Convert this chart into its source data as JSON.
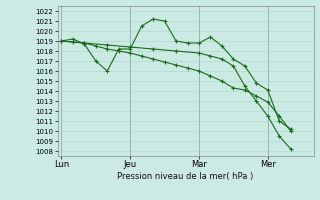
{
  "bg_color": "#cceae4",
  "grid_color": "#aad4cc",
  "line_color": "#1a6b1a",
  "xlabel": "Pression niveau de la mer( hPa )",
  "ylim": [
    1007.5,
    1022.5
  ],
  "yticks": [
    1008,
    1009,
    1010,
    1011,
    1012,
    1013,
    1014,
    1015,
    1016,
    1017,
    1018,
    1019,
    1020,
    1021,
    1022
  ],
  "xtick_labels": [
    "Lun",
    "Jeu",
    "Mar",
    "Mer"
  ],
  "xtick_positions": [
    0,
    36,
    72,
    108
  ],
  "vline_positions": [
    0,
    36,
    72,
    108
  ],
  "xlim": [
    -2,
    132
  ],
  "series": [
    {
      "x": [
        0,
        6,
        12,
        18,
        24,
        30,
        36,
        42,
        48,
        54,
        60,
        66,
        72,
        78,
        84,
        90,
        96,
        102,
        108,
        114,
        120
      ],
      "y": [
        1019.0,
        1019.2,
        1018.7,
        1017.0,
        1016.0,
        1018.2,
        1018.2,
        1020.5,
        1021.2,
        1021.0,
        1019.0,
        1018.8,
        1018.8,
        1019.4,
        1018.5,
        1017.2,
        1016.5,
        1014.8,
        1014.1,
        1011.0,
        1010.2
      ]
    },
    {
      "x": [
        0,
        6,
        12,
        18,
        24,
        30,
        36,
        42,
        48,
        54,
        60,
        66,
        72,
        78,
        84,
        90,
        96,
        102,
        108,
        114,
        120
      ],
      "y": [
        1019.0,
        1018.9,
        1018.8,
        1018.5,
        1018.2,
        1018.0,
        1017.8,
        1017.5,
        1017.2,
        1016.9,
        1016.6,
        1016.3,
        1016.0,
        1015.5,
        1015.0,
        1014.3,
        1014.1,
        1013.5,
        1012.9,
        1011.5,
        1010.0
      ]
    },
    {
      "x": [
        0,
        12,
        24,
        36,
        48,
        60,
        72,
        78,
        84,
        90,
        96,
        102,
        108,
        114,
        120
      ],
      "y": [
        1019.0,
        1018.8,
        1018.6,
        1018.4,
        1018.2,
        1018.0,
        1017.8,
        1017.5,
        1017.2,
        1016.5,
        1014.5,
        1013.0,
        1011.5,
        1009.5,
        1008.2
      ]
    }
  ]
}
